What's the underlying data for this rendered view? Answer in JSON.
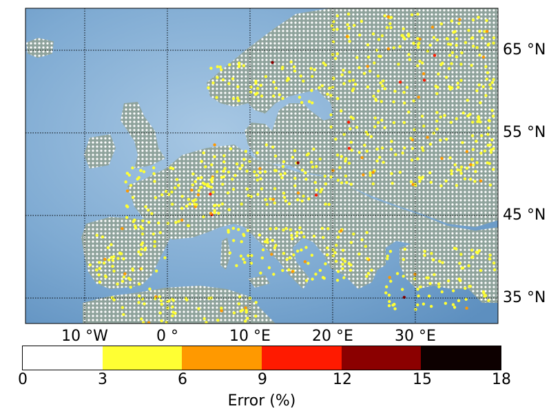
{
  "map": {
    "lat_labels": [
      "65 °N",
      "55 °N",
      "45 °N",
      "35 °N"
    ],
    "lon_labels": [
      "10 °W",
      "0 °",
      "10 °E",
      "20 °E",
      "30 °E"
    ],
    "graticule": "dotted",
    "background": "shaded-relief"
  },
  "colorbar": {
    "title": "Error (%)",
    "ticks": [
      "0",
      "3",
      "6",
      "9",
      "12",
      "15",
      "18"
    ],
    "colors": [
      "#ffffff",
      "#ffff33",
      "#ff9900",
      "#ff1a00",
      "#8b0000",
      "#0d0000"
    ]
  },
  "colors": {
    "sea": "#6e9cc6",
    "land": "#8ea39c",
    "graticule": "#000000"
  }
}
